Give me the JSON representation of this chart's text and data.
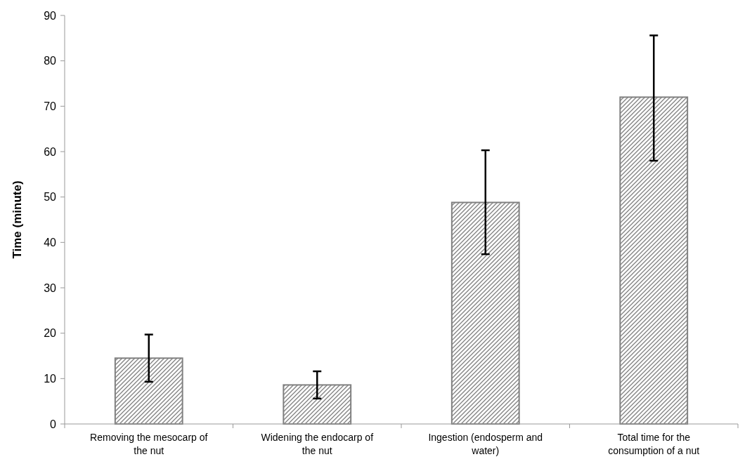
{
  "chart_data": {
    "type": "bar",
    "ylabel": "Time (minute)",
    "categories": [
      "Removing the mesocarp of the nut",
      "Widening the endocarp of the nut",
      "Ingestion (endosperm and water)",
      "Total time  for the consumption of a nut"
    ],
    "values": [
      14.5,
      8.6,
      48.8,
      72
    ],
    "errors": [
      [
        9.3,
        19.7
      ],
      [
        5.6,
        11.6
      ],
      [
        37.4,
        60.3
      ],
      [
        58,
        85.6
      ]
    ],
    "color": "#808080",
    "ylim": [
      0,
      90
    ],
    "yticks": [
      0,
      10,
      20,
      30,
      40,
      50,
      60,
      70,
      80,
      90
    ],
    "grid": false
  }
}
